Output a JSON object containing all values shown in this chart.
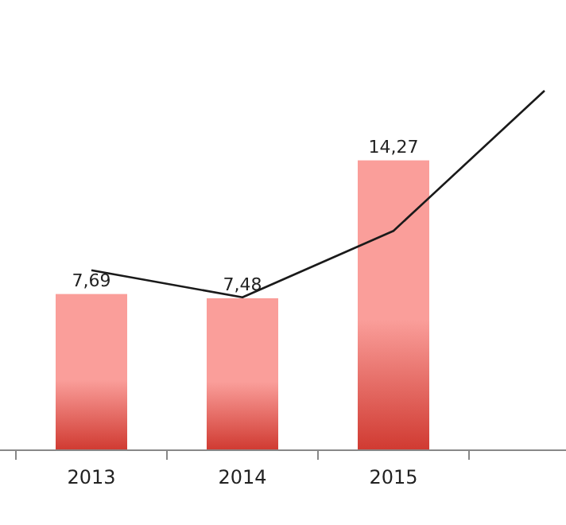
{
  "chart_data": {
    "type": "bar",
    "categories": [
      "2013",
      "2014",
      "2015",
      null
    ],
    "series": [
      {
        "color": "#fa9e9a",
        "values": [
          7.69,
          7.48,
          14.27,
          null
        ],
        "value_labels": [
          "7,69",
          "7,48",
          "14,27",
          null
        ]
      },
      {
        "type": "line",
        "color": "#1a1a1a",
        "values": [
          8.86,
          7.53,
          10.8,
          17.7
        ]
      }
    ]
  }
}
